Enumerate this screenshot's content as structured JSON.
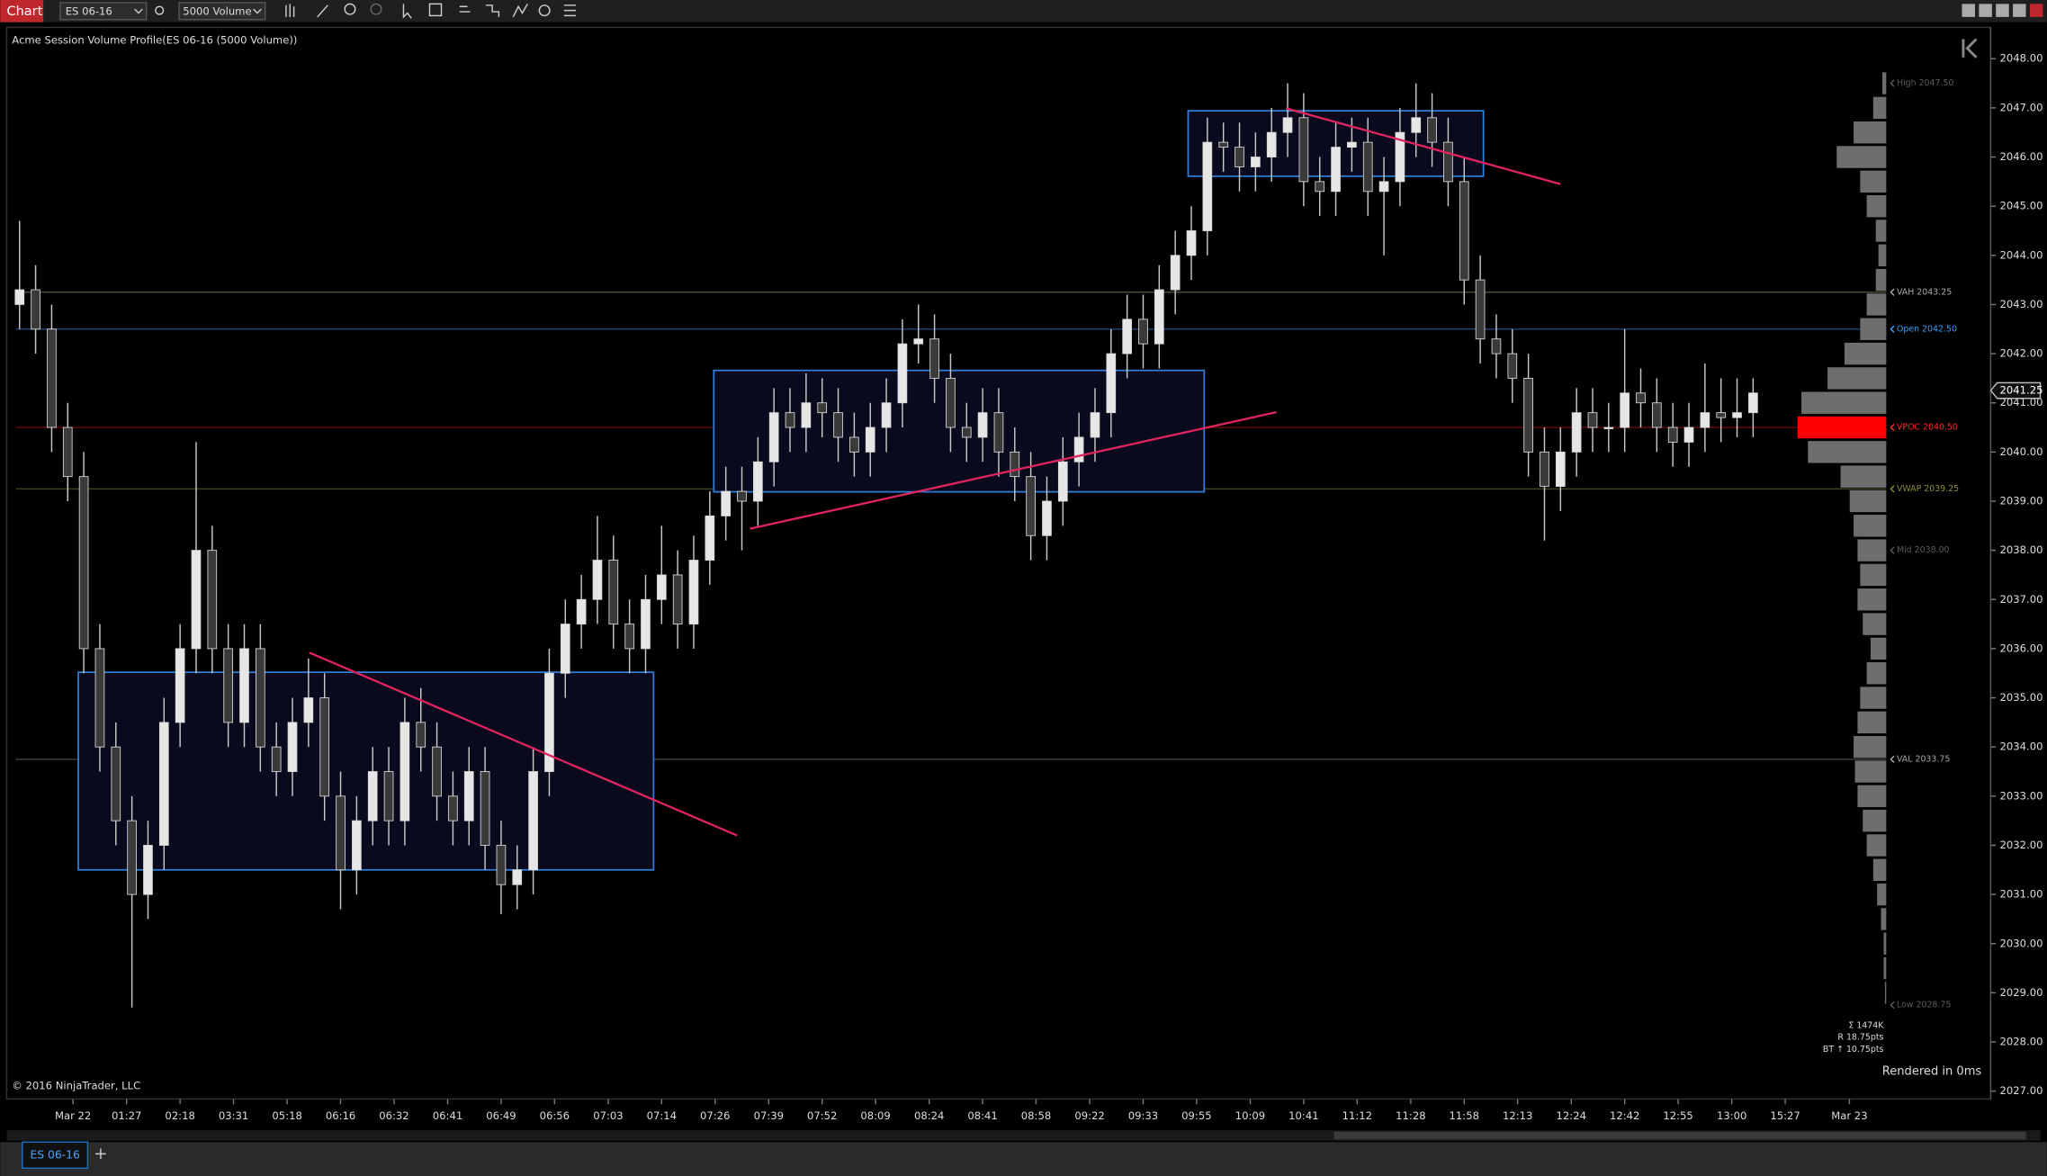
{
  "toolbar": {
    "app": "Chart",
    "instrument": "ES 06-16",
    "interval": "5000 Volume"
  },
  "tab": "ES 06-16",
  "chart_data": {
    "type": "candlestick",
    "title": "Acme Session Volume Profile(ES 06-16 (5000 Volume))",
    "copyright": "© 2016 NinjaTrader, LLC",
    "render_note": "Rendered in 0ms",
    "stats": [
      "Σ 1474K",
      "R 18.75pts",
      "BT ↑ 10.75pts"
    ],
    "up_color": "#e6e6e6",
    "down_color": "#3a3a3a",
    "wick_color": "#c8c8c8",
    "xlim": [
      -0.8,
      122.8
    ],
    "ylim": [
      2026.84,
      2048.61
    ],
    "yticks": [
      {
        "value": 2027,
        "label": "2027.00"
      },
      {
        "value": 2028,
        "label": "2028.00"
      },
      {
        "value": 2029,
        "label": "2029.00"
      },
      {
        "value": 2030,
        "label": "2030.00"
      },
      {
        "value": 2031,
        "label": "2031.00"
      },
      {
        "value": 2032,
        "label": "2032.00"
      },
      {
        "value": 2033,
        "label": "2033.00"
      },
      {
        "value": 2034,
        "label": "2034.00"
      },
      {
        "value": 2035,
        "label": "2035.00"
      },
      {
        "value": 2036,
        "label": "2036.00"
      },
      {
        "value": 2037,
        "label": "2037.00"
      },
      {
        "value": 2038,
        "label": "2038.00"
      },
      {
        "value": 2039,
        "label": "2039.00"
      },
      {
        "value": 2040,
        "label": "2040.00"
      },
      {
        "value": 2041,
        "label": "2041.00"
      },
      {
        "value": 2042,
        "label": "2042.00"
      },
      {
        "value": 2043,
        "label": "2043.00"
      },
      {
        "value": 2044,
        "label": "2044.00"
      },
      {
        "value": 2045,
        "label": "2045.00"
      },
      {
        "value": 2046,
        "label": "2046.00"
      },
      {
        "value": 2047,
        "label": "2047.00"
      },
      {
        "value": 2048,
        "label": "2048.00"
      }
    ],
    "xticks": [
      {
        "value": 3.33,
        "label": "Mar 22"
      },
      {
        "value": 6.67,
        "label": "01:27"
      },
      {
        "value": 10,
        "label": "02:18"
      },
      {
        "value": 13.33,
        "label": "03:31"
      },
      {
        "value": 16.67,
        "label": "05:18"
      },
      {
        "value": 20,
        "label": "06:16"
      },
      {
        "value": 23.33,
        "label": "06:32"
      },
      {
        "value": 26.67,
        "label": "06:41"
      },
      {
        "value": 30,
        "label": "06:49"
      },
      {
        "value": 33.33,
        "label": "06:56"
      },
      {
        "value": 36.67,
        "label": "07:03"
      },
      {
        "value": 40,
        "label": "07:14"
      },
      {
        "value": 43.33,
        "label": "07:26"
      },
      {
        "value": 46.67,
        "label": "07:39"
      },
      {
        "value": 50,
        "label": "07:52"
      },
      {
        "value": 53.33,
        "label": "08:09"
      },
      {
        "value": 56.67,
        "label": "08:24"
      },
      {
        "value": 60,
        "label": "08:41"
      },
      {
        "value": 63.33,
        "label": "08:58"
      },
      {
        "value": 66.67,
        "label": "09:22"
      },
      {
        "value": 70,
        "label": "09:33"
      },
      {
        "value": 73.33,
        "label": "09:55"
      },
      {
        "value": 76.67,
        "label": "10:09"
      },
      {
        "value": 80,
        "label": "10:41"
      },
      {
        "value": 83.33,
        "label": "11:12"
      },
      {
        "value": 86.67,
        "label": "11:28"
      },
      {
        "value": 90,
        "label": "11:58"
      },
      {
        "value": 93.33,
        "label": "12:13"
      },
      {
        "value": 96.67,
        "label": "12:24"
      },
      {
        "value": 100,
        "label": "12:42"
      },
      {
        "value": 103.33,
        "label": "12:55"
      },
      {
        "value": 106.67,
        "label": "13:00"
      },
      {
        "value": 110,
        "label": "15:27"
      },
      {
        "value": 114,
        "label": "Mar 23"
      }
    ],
    "last_price": 2041.25,
    "ohlc": [
      [
        2043.0,
        2044.7,
        2042.5,
        2043.3
      ],
      [
        2043.3,
        2043.8,
        2042.0,
        2042.5
      ],
      [
        2042.5,
        2043.0,
        2040.0,
        2040.5
      ],
      [
        2040.5,
        2041.0,
        2039.0,
        2039.5
      ],
      [
        2039.5,
        2040.0,
        2035.5,
        2036
      ],
      [
        2036,
        2036.5,
        2033.5,
        2034
      ],
      [
        2034,
        2034.5,
        2032.0,
        2032.5
      ],
      [
        2032.5,
        2033.0,
        2028.7,
        2031
      ],
      [
        2031,
        2032.5,
        2030.5,
        2032
      ],
      [
        2032,
        2035.0,
        2031.5,
        2034.5
      ],
      [
        2034.5,
        2036.5,
        2034.0,
        2036
      ],
      [
        2036,
        2040.2,
        2035.5,
        2038
      ],
      [
        2038,
        2038.5,
        2035.5,
        2036
      ],
      [
        2036,
        2036.5,
        2034.0,
        2034.5
      ],
      [
        2034.5,
        2036.5,
        2034.0,
        2036
      ],
      [
        2036,
        2036.5,
        2033.5,
        2034
      ],
      [
        2034,
        2034.5,
        2033.0,
        2033.5
      ],
      [
        2033.5,
        2035.0,
        2033.0,
        2034.5
      ],
      [
        2034.5,
        2035.8,
        2034.0,
        2035
      ],
      [
        2035,
        2035.5,
        2032.5,
        2033
      ],
      [
        2033,
        2033.5,
        2030.7,
        2031.5
      ],
      [
        2031.5,
        2033.0,
        2031.0,
        2032.5
      ],
      [
        2032.5,
        2034.0,
        2032.0,
        2033.5
      ],
      [
        2033.5,
        2034.0,
        2032.0,
        2032.5
      ],
      [
        2032.5,
        2035.0,
        2032.0,
        2034.5
      ],
      [
        2034.5,
        2035.2,
        2033.5,
        2034
      ],
      [
        2034,
        2034.5,
        2032.5,
        2033
      ],
      [
        2033,
        2033.5,
        2032.0,
        2032.5
      ],
      [
        2032.5,
        2034.0,
        2032.0,
        2033.5
      ],
      [
        2033.5,
        2034.0,
        2031.5,
        2032
      ],
      [
        2032,
        2032.5,
        2030.6,
        2031.2
      ],
      [
        2031.2,
        2032.0,
        2030.7,
        2031.5
      ],
      [
        2031.5,
        2034.0,
        2031.0,
        2033.5
      ],
      [
        2033.5,
        2036.0,
        2033.0,
        2035.5
      ],
      [
        2035.5,
        2037.0,
        2035.0,
        2036.5
      ],
      [
        2036.5,
        2037.5,
        2036.0,
        2037
      ],
      [
        2037,
        2038.7,
        2036.5,
        2037.8
      ],
      [
        2037.8,
        2038.3,
        2036.0,
        2036.5
      ],
      [
        2036.5,
        2037.0,
        2035.5,
        2036
      ],
      [
        2036,
        2037.5,
        2035.5,
        2037
      ],
      [
        2037,
        2038.5,
        2036.5,
        2037.5
      ],
      [
        2037.5,
        2038.0,
        2036.0,
        2036.5
      ],
      [
        2036.5,
        2038.3,
        2036.0,
        2037.8
      ],
      [
        2037.8,
        2039.2,
        2037.3,
        2038.7
      ],
      [
        2038.7,
        2039.7,
        2038.2,
        2039.2
      ],
      [
        2039.2,
        2039.7,
        2038.0,
        2039
      ],
      [
        2039,
        2040.3,
        2038.5,
        2039.8
      ],
      [
        2039.8,
        2041.3,
        2039.3,
        2040.8
      ],
      [
        2040.8,
        2041.3,
        2040.0,
        2040.5
      ],
      [
        2040.5,
        2041.6,
        2040.0,
        2041
      ],
      [
        2041,
        2041.5,
        2040.3,
        2040.8
      ],
      [
        2040.8,
        2041.3,
        2039.8,
        2040.3
      ],
      [
        2040.3,
        2040.8,
        2039.5,
        2040
      ],
      [
        2040,
        2041.0,
        2039.5,
        2040.5
      ],
      [
        2040.5,
        2041.5,
        2040.0,
        2041
      ],
      [
        2041,
        2042.7,
        2040.5,
        2042.2
      ],
      [
        2042.2,
        2043.0,
        2041.8,
        2042.3
      ],
      [
        2042.3,
        2042.8,
        2041.0,
        2041.5
      ],
      [
        2041.5,
        2042.0,
        2040.0,
        2040.5
      ],
      [
        2040.5,
        2041.0,
        2039.8,
        2040.3
      ],
      [
        2040.3,
        2041.3,
        2039.8,
        2040.8
      ],
      [
        2040.8,
        2041.3,
        2039.5,
        2040
      ],
      [
        2040,
        2040.5,
        2039.0,
        2039.5
      ],
      [
        2039.5,
        2040.0,
        2037.8,
        2038.3
      ],
      [
        2038.3,
        2039.5,
        2037.8,
        2039
      ],
      [
        2039,
        2040.3,
        2038.5,
        2039.8
      ],
      [
        2039.8,
        2040.8,
        2039.3,
        2040.3
      ],
      [
        2040.3,
        2041.3,
        2039.8,
        2040.8
      ],
      [
        2040.8,
        2042.5,
        2040.3,
        2042
      ],
      [
        2042,
        2043.2,
        2041.5,
        2042.7
      ],
      [
        2042.7,
        2043.2,
        2041.7,
        2042.2
      ],
      [
        2042.2,
        2043.8,
        2041.7,
        2043.3
      ],
      [
        2043.3,
        2044.5,
        2042.8,
        2044
      ],
      [
        2044,
        2045.0,
        2043.5,
        2044.5
      ],
      [
        2044.5,
        2046.8,
        2044.0,
        2046.3
      ],
      [
        2046.3,
        2046.7,
        2045.7,
        2046.2
      ],
      [
        2046.2,
        2046.7,
        2045.3,
        2045.8
      ],
      [
        2045.8,
        2046.5,
        2045.3,
        2046
      ],
      [
        2046,
        2047.0,
        2045.5,
        2046.5
      ],
      [
        2046.5,
        2047.5,
        2046.0,
        2046.8
      ],
      [
        2046.8,
        2047.3,
        2045.0,
        2045.5
      ],
      [
        2045.5,
        2046.0,
        2044.8,
        2045.3
      ],
      [
        2045.3,
        2046.7,
        2044.8,
        2046.2
      ],
      [
        2046.2,
        2046.8,
        2045.7,
        2046.3
      ],
      [
        2046.3,
        2046.8,
        2044.8,
        2045.3
      ],
      [
        2045.3,
        2046.0,
        2044.0,
        2045.5
      ],
      [
        2045.5,
        2047.0,
        2045.0,
        2046.5
      ],
      [
        2046.5,
        2047.5,
        2046.0,
        2046.8
      ],
      [
        2046.8,
        2047.3,
        2045.8,
        2046.3
      ],
      [
        2046.3,
        2046.8,
        2045.0,
        2045.5
      ],
      [
        2045.5,
        2046.0,
        2043.0,
        2043.5
      ],
      [
        2043.5,
        2044.0,
        2041.8,
        2042.3
      ],
      [
        2042.3,
        2042.8,
        2041.5,
        2042
      ],
      [
        2042,
        2042.5,
        2041.0,
        2041.5
      ],
      [
        2041.5,
        2042.0,
        2039.5,
        2040
      ],
      [
        2040,
        2040.5,
        2038.2,
        2039.3
      ],
      [
        2039.3,
        2040.5,
        2038.8,
        2040
      ],
      [
        2040,
        2041.3,
        2039.5,
        2040.8
      ],
      [
        2040.8,
        2041.3,
        2040.0,
        2040.5
      ],
      [
        2040.5,
        2041.0,
        2040.0,
        2040.5
      ],
      [
        2040.5,
        2042.5,
        2040.0,
        2041.2
      ],
      [
        2041.2,
        2041.7,
        2040.5,
        2041
      ],
      [
        2041,
        2041.5,
        2040.0,
        2040.5
      ],
      [
        2040.5,
        2041.0,
        2039.7,
        2040.2
      ],
      [
        2040.2,
        2041.0,
        2039.7,
        2040.5
      ],
      [
        2040.5,
        2041.8,
        2040.0,
        2040.8
      ],
      [
        2040.8,
        2041.5,
        2040.2,
        2040.7
      ],
      [
        2040.7,
        2041.5,
        2040.3,
        2040.8
      ],
      [
        2040.8,
        2041.5,
        2040.3,
        2041.2
      ]
    ],
    "levels": [
      {
        "label": "High 2047.50",
        "price": 2047.5,
        "line": false,
        "color": "#444",
        "label_color": "#5a5a5a"
      },
      {
        "label": "VAH 2043.25",
        "price": 2043.25,
        "line": true,
        "color": "#4a4a36",
        "label_color": "#a8a8a8"
      },
      {
        "label": "Open 2042.50",
        "price": 2042.5,
        "line": true,
        "color": "#1d3f6e",
        "label_color": "#3c9cff"
      },
      {
        "label": "VPOC 2040.50",
        "price": 2040.5,
        "line": true,
        "color": "#6a0c0c",
        "label_color": "#ff2a2a"
      },
      {
        "label": "VWAP 2039.25",
        "price": 2039.25,
        "line": true,
        "color": "#3f3f22",
        "label_color": "#8c8c3c"
      },
      {
        "label": "Mid 2038.00",
        "price": 2038.0,
        "line": false,
        "color": "#444",
        "label_color": "#5a5a5a"
      },
      {
        "label": "VAL 2033.75",
        "price": 2033.75,
        "line": true,
        "color": "#3c3c3c",
        "label_color": "#a8a8a8"
      },
      {
        "label": "Low 2028.75",
        "price": 2028.75,
        "line": false,
        "color": "#444",
        "label_color": "#5a5a5a"
      }
    ],
    "profile": {
      "color": "#6e6e6e",
      "poc_color": "#ff0000",
      "prices": [
        2047.5,
        2047.0,
        2046.5,
        2046.0,
        2045.5,
        2045.0,
        2044.5,
        2044.0,
        2043.5,
        2043.0,
        2042.5,
        2042.0,
        2041.5,
        2041.0,
        2040.5,
        2040.0,
        2039.5,
        2039.0,
        2038.5,
        2038.0,
        2037.5,
        2037.0,
        2036.5,
        2036.0,
        2035.5,
        2035.0,
        2034.5,
        2034.0,
        2033.5,
        2033.0,
        2032.5,
        2032.0,
        2031.5,
        2031.0,
        2030.5,
        2030.0,
        2029.5,
        2029.0
      ],
      "volumes": [
        3,
        10,
        25,
        38,
        20,
        15,
        8,
        6,
        8,
        15,
        20,
        32,
        45,
        65,
        68,
        60,
        35,
        28,
        25,
        22,
        20,
        22,
        18,
        12,
        15,
        20,
        22,
        25,
        24,
        22,
        18,
        15,
        10,
        7,
        4,
        2,
        2,
        1
      ]
    },
    "drawings": {
      "rectangles": [
        {
          "x": [
            3.66,
            39.5
          ],
          "y": [
            2035.52,
            2031.5
          ],
          "color": "#2f7fd8"
        },
        {
          "x": [
            43.25,
            73.8
          ],
          "y": [
            2041.66,
            2039.19
          ],
          "color": "#2f7fd8"
        },
        {
          "x": [
            72.8,
            91.2
          ],
          "y": [
            2046.94,
            2045.61
          ],
          "color": "#2f7fd8"
        }
      ],
      "lines": [
        {
          "x": [
            18.05,
            44.7
          ],
          "y": [
            2035.92,
            2032.2
          ],
          "color": "#e0245e"
        },
        {
          "x": [
            45.5,
            78.3
          ],
          "y": [
            2038.44,
            2040.81
          ],
          "color": "#e0245e"
        },
        {
          "x": [
            78.9,
            96.0
          ],
          "y": [
            2046.99,
            2045.45
          ],
          "color": "#e0245e"
        }
      ]
    }
  }
}
